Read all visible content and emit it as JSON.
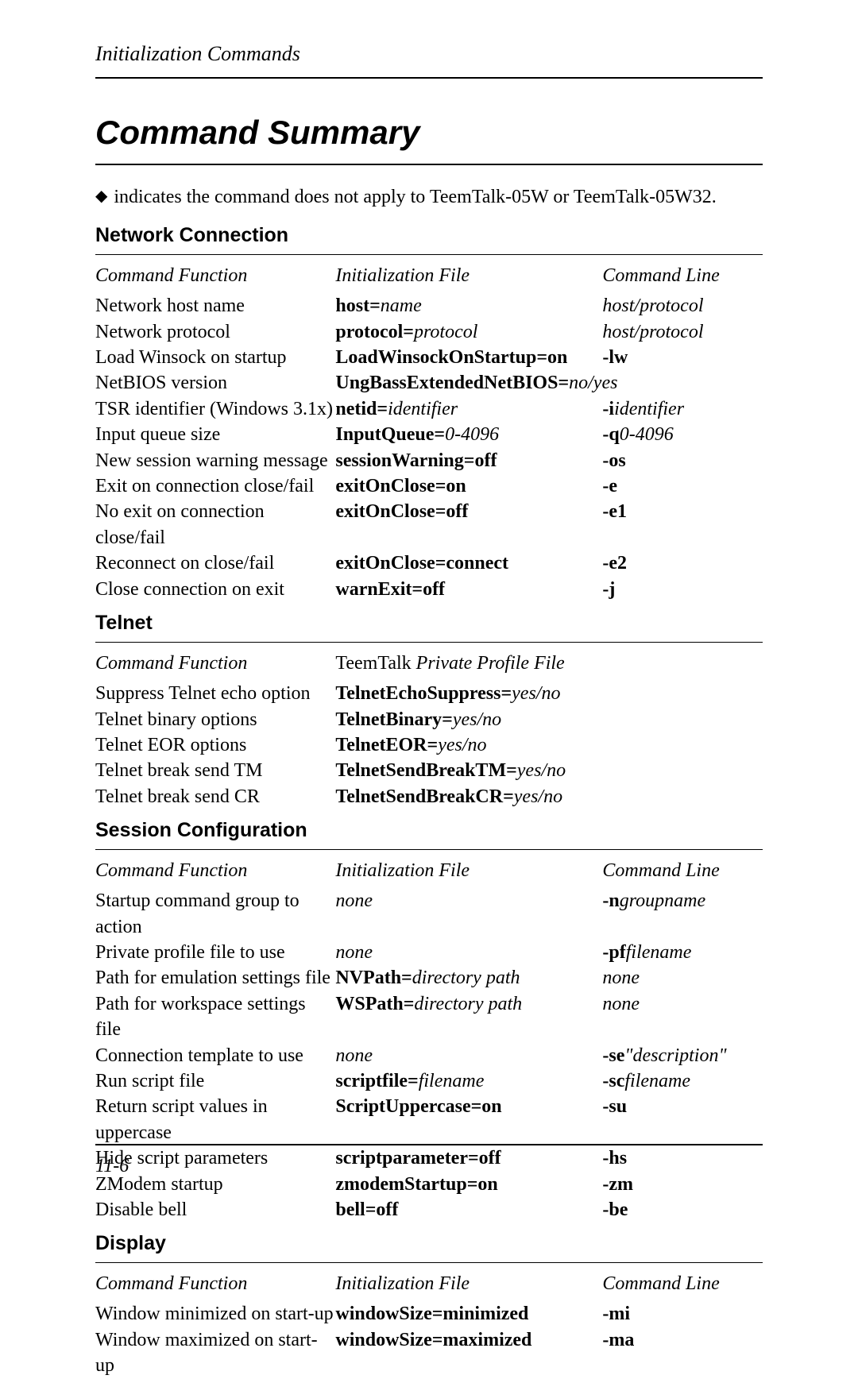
{
  "running_head": "Initialization Commands",
  "main_title": "Command Summary",
  "note_symbol": "◆",
  "note_text": "indicates the command does not apply to TeemTalk-05W or TeemTalk-05W32.",
  "footer_page": "11-6",
  "sections": {
    "network": {
      "title": "Network Connection",
      "header_col1": "Command Function",
      "header_col2": "Initialization File",
      "header_col3": "Command Line",
      "rows": [
        {
          "c1": "Network host name",
          "c2b": "host=",
          "c2i": "name",
          "c3i": "host/protocol"
        },
        {
          "c1": "Network protocol",
          "c2b": "protocol=",
          "c2i": "protocol",
          "c3i": "host/protocol"
        },
        {
          "c1": "Load Winsock on startup",
          "c2b": "LoadWinsockOnStartup=on",
          "c2i": "",
          "c3b": "-lw"
        },
        {
          "c1": "NetBIOS version",
          "c2b": "UngBassExtendedNetBIOS=",
          "c2i": "no/yes",
          "c3": ""
        },
        {
          "c1": "TSR identifier (Windows 3.1x)",
          "c2b": "netid=",
          "c2i": "identifier",
          "c3b": "-i",
          "c3i": "identifier"
        },
        {
          "c1": "Input queue size",
          "c2b": "InputQueue=",
          "c2i": "0-4096",
          "c3b": "-q",
          "c3i": "0-4096"
        },
        {
          "c1": "New session warning message",
          "c2b": "sessionWarning=off",
          "c2i": "",
          "c3b": "-os"
        },
        {
          "c1": "Exit on connection close/fail",
          "c2b": "exitOnClose=on",
          "c2i": "",
          "c3b": "-e"
        },
        {
          "c1": "No exit on connection close/fail",
          "c2b": "exitOnClose=off",
          "c2i": "",
          "c3b": "-e1"
        },
        {
          "c1": "Reconnect on close/fail",
          "c2b": "exitOnClose=connect",
          "c2i": "",
          "c3b": "-e2"
        },
        {
          "c1": "Close connection on exit",
          "c2b": "warnExit=off",
          "c2i": "",
          "c3b": "-j"
        }
      ]
    },
    "telnet": {
      "title": "Telnet",
      "header_col1": "Command Function",
      "header_col2_plain": "TeemTalk ",
      "header_col2_italic": "Private Profile File",
      "rows": [
        {
          "c1": "Suppress Telnet echo option",
          "c2b": "TelnetEchoSuppress=",
          "c2i": "yes/no"
        },
        {
          "c1": "Telnet binary options",
          "c2b": "TelnetBinary=",
          "c2i": "yes/no"
        },
        {
          "c1": "Telnet EOR options",
          "c2b": "TelnetEOR=",
          "c2i": "yes/no"
        },
        {
          "c1": "Telnet break send TM",
          "c2b": "TelnetSendBreakTM=",
          "c2i": "yes/no"
        },
        {
          "c1": "Telnet break send CR",
          "c2b": "TelnetSendBreakCR=",
          "c2i": "yes/no"
        }
      ]
    },
    "session": {
      "title": "Session Configuration",
      "header_col1": "Command Function",
      "header_col2": "Initialization File",
      "header_col3": "Command Line",
      "rows": [
        {
          "c1": "Startup command group to action",
          "c2i_only": "none",
          "c3b": "-n",
          "c3i": "groupname"
        },
        {
          "c1": "Private profile file to use",
          "c2i_only": "none",
          "c3b": "-pf",
          "c3i": "filename"
        },
        {
          "c1": "Path for emulation settings file",
          "c2b": "NVPath=",
          "c2i": "directory path",
          "c3i": "none"
        },
        {
          "c1": "Path for workspace settings file",
          "c2b": "WSPath=",
          "c2i": "directory path",
          "c3i": "none"
        },
        {
          "c1": "Connection template to use",
          "c2i_only": "none",
          "c3b": "-se",
          "c3i": "\"description\""
        },
        {
          "c1": "Run script file",
          "c2b": "scriptfile=",
          "c2i": "filename",
          "c3b": "-sc",
          "c3i": "filename"
        },
        {
          "c1": "Return script values in uppercase",
          "c2b": "ScriptUppercase=on",
          "c2i": "",
          "c3b": "-su"
        },
        {
          "c1": "Hide script parameters",
          "c2b": "scriptparameter=off",
          "c2i": "",
          "c3b": "-hs"
        },
        {
          "c1": "ZModem startup",
          "c2b": "zmodemStartup=on",
          "c2i": "",
          "c3b": "-zm"
        },
        {
          "c1": "Disable bell",
          "c2b": "bell=off",
          "c2i": "",
          "c3b": "-be"
        }
      ]
    },
    "display": {
      "title": "Display",
      "header_col1": "Command Function",
      "header_col2": "Initialization File",
      "header_col3": "Command Line",
      "rows": [
        {
          "c1": "Window minimized on start-up",
          "c2b": "windowSize=minimized",
          "c2i": "",
          "c3b": "-mi"
        },
        {
          "c1": "Window maximized on start-up",
          "c2b": "windowSize=maximized",
          "c2i": "",
          "c3b": "-ma"
        }
      ]
    }
  }
}
